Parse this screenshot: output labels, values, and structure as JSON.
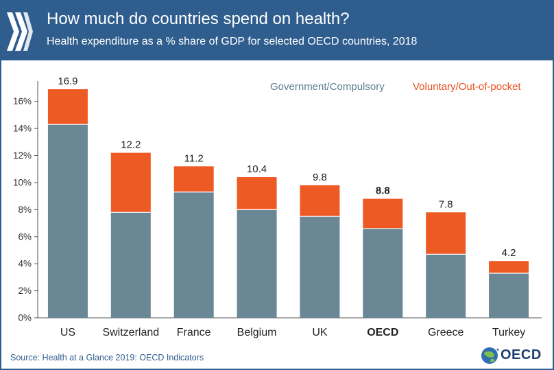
{
  "header": {
    "title": "How much do countries spend on health?",
    "subtitle": "Health expenditure as a % share of GDP for selected OECD countries, 2018"
  },
  "footer": {
    "source": "Source: Health at a Glance 2019: OECD Indicators",
    "logo_text": "OECD"
  },
  "colors": {
    "header_bg": "#2f5e8e",
    "government": "#6a8796",
    "voluntary": "#ee5a24",
    "legend_government": "#5b7e91",
    "legend_voluntary": "#e8501c"
  },
  "chart_data": {
    "type": "bar",
    "stacked": true,
    "title": "How much do countries spend on health?",
    "xlabel": "",
    "ylabel": "",
    "ylim": [
      0,
      17
    ],
    "yticks": [
      0,
      2,
      4,
      6,
      8,
      10,
      12,
      14,
      16
    ],
    "ytick_labels": [
      "0%",
      "2%",
      "4%",
      "6%",
      "8%",
      "10%",
      "12%",
      "14%",
      "16%"
    ],
    "categories": [
      "US",
      "Switzerland",
      "France",
      "Belgium",
      "UK",
      "OECD",
      "Greece",
      "Turkey"
    ],
    "series": [
      {
        "name": "Government/Compulsory",
        "values": [
          14.3,
          7.8,
          9.3,
          8.0,
          7.5,
          6.6,
          4.7,
          3.3
        ]
      },
      {
        "name": "Voluntary/Out-of-pocket",
        "values": [
          2.6,
          4.4,
          1.9,
          2.4,
          2.3,
          2.2,
          3.1,
          0.9
        ]
      }
    ],
    "total_labels": [
      "16.9",
      "12.2",
      "11.2",
      "10.4",
      "9.8",
      "8.8",
      "7.8",
      "4.2"
    ],
    "highlight_category": "OECD",
    "legend": [
      "Government/Compulsory",
      "Voluntary/Out-of-pocket"
    ],
    "legend_position": "top-right",
    "grid": false
  }
}
